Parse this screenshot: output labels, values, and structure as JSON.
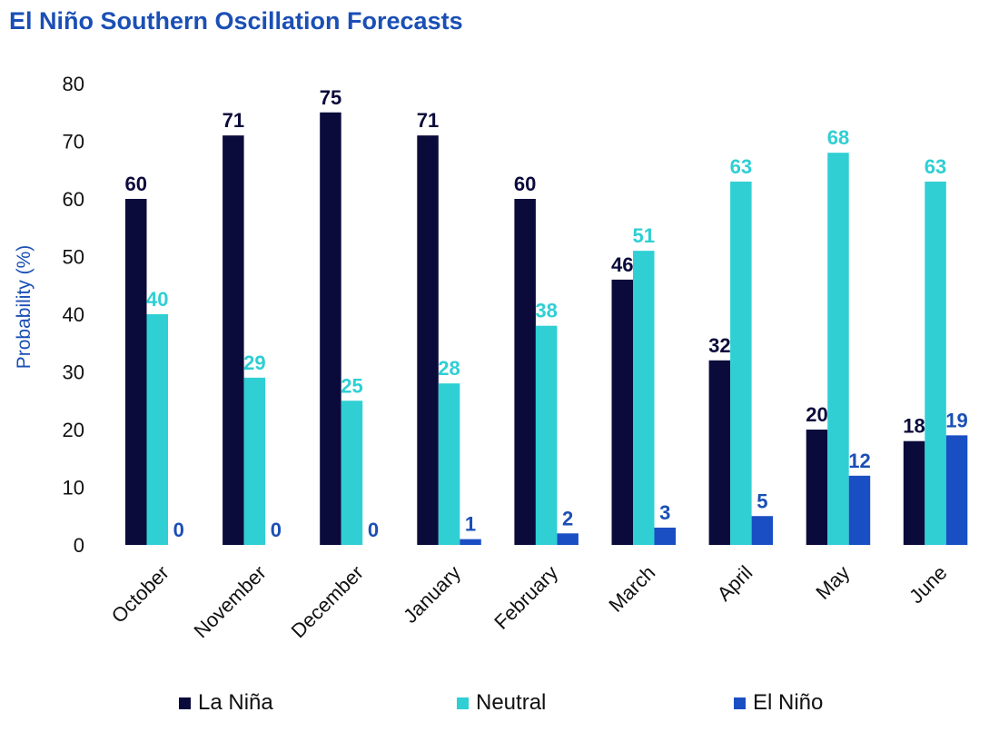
{
  "chart_data": {
    "type": "bar",
    "title": "El Niño Southern Oscillation Forecasts",
    "xlabel": "",
    "ylabel": "Probability (%)",
    "ylim": [
      0,
      80
    ],
    "yticks": [
      0,
      10,
      20,
      30,
      40,
      50,
      60,
      70,
      80
    ],
    "grid": false,
    "legend_position": "bottom",
    "categories": [
      "October",
      "November",
      "December",
      "January",
      "February",
      "March",
      "April",
      "May",
      "June"
    ],
    "series": [
      {
        "name": "La Niña",
        "color": "#0b0b3b",
        "label_color": "#0b0b3b",
        "values": [
          60,
          71,
          75,
          71,
          60,
          46,
          32,
          20,
          18
        ]
      },
      {
        "name": "Neutral",
        "color": "#2fcfd4",
        "label_color": "#2fcfd4",
        "values": [
          40,
          29,
          25,
          28,
          38,
          51,
          63,
          68,
          63
        ]
      },
      {
        "name": "El Niño",
        "color": "#1a4fc4",
        "label_color": "#1a4fb5",
        "values": [
          0,
          0,
          0,
          1,
          2,
          3,
          5,
          12,
          19
        ]
      }
    ]
  },
  "colors": {
    "title": "#1a4fb5",
    "axis_label": "#1a4fb5",
    "text": "#111111"
  }
}
